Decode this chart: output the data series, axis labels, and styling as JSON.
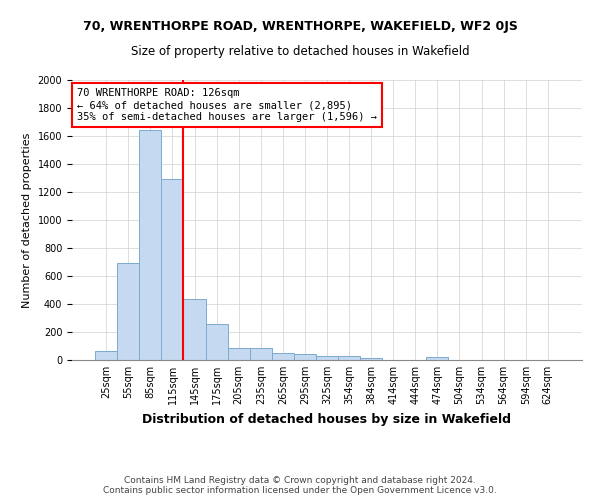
{
  "title": "70, WRENTHORPE ROAD, WRENTHORPE, WAKEFIELD, WF2 0JS",
  "subtitle": "Size of property relative to detached houses in Wakefield",
  "xlabel": "Distribution of detached houses by size in Wakefield",
  "ylabel": "Number of detached properties",
  "footer_line1": "Contains HM Land Registry data © Crown copyright and database right 2024.",
  "footer_line2": "Contains public sector information licensed under the Open Government Licence v3.0.",
  "bar_labels": [
    "25sqm",
    "55sqm",
    "85sqm",
    "115sqm",
    "145sqm",
    "175sqm",
    "205sqm",
    "235sqm",
    "265sqm",
    "295sqm",
    "325sqm",
    "354sqm",
    "384sqm",
    "414sqm",
    "444sqm",
    "474sqm",
    "504sqm",
    "534sqm",
    "564sqm",
    "594sqm",
    "624sqm"
  ],
  "bar_values": [
    65,
    690,
    1640,
    1290,
    435,
    255,
    88,
    88,
    50,
    45,
    30,
    28,
    15,
    0,
    0,
    22,
    0,
    0,
    0,
    0,
    0
  ],
  "bar_color": "#c5d9f0",
  "bar_edge_color": "#7aabcf",
  "vline_position": 3.5,
  "annotation_line1": "70 WRENTHORPE ROAD: 126sqm",
  "annotation_line2": "← 64% of detached houses are smaller (2,895)",
  "annotation_line3": "35% of semi-detached houses are larger (1,596) →",
  "ylim": [
    0,
    2000
  ],
  "yticks": [
    0,
    200,
    400,
    600,
    800,
    1000,
    1200,
    1400,
    1600,
    1800,
    2000
  ],
  "background_color": "#ffffff",
  "grid_color": "#d0d0d0",
  "title_fontsize": 9,
  "subtitle_fontsize": 8.5,
  "ylabel_fontsize": 8,
  "xlabel_fontsize": 9,
  "tick_fontsize": 7,
  "footer_fontsize": 6.5,
  "annot_fontsize": 7.5
}
